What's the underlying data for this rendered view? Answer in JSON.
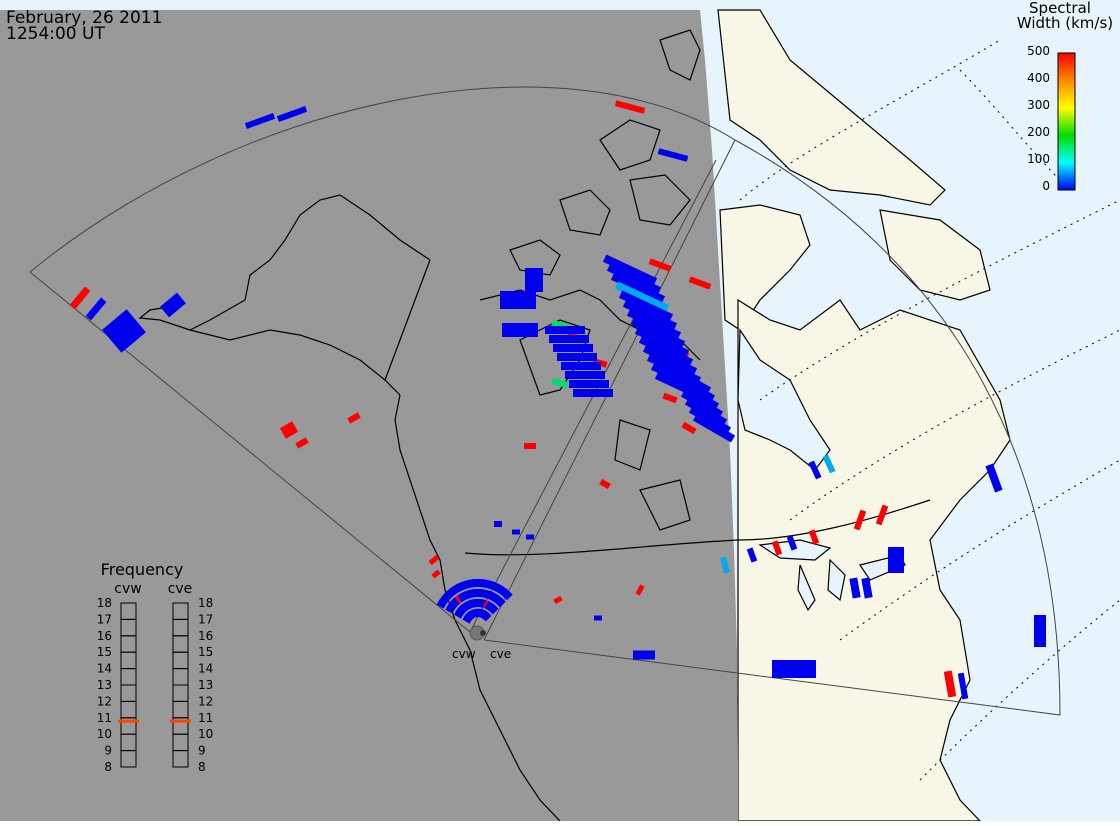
{
  "header": {
    "date": "February, 26 2011",
    "time": "1254:00 UT"
  },
  "legend": {
    "title_line1": "Spectral",
    "title_line2": "Width (km/s)",
    "ticks": [
      "500",
      "400",
      "300",
      "200",
      "100",
      "0"
    ],
    "colors": [
      "#ff0000",
      "#ff8800",
      "#ffff00",
      "#00dd00",
      "#00ffff",
      "#0000ff"
    ]
  },
  "frequency_panel": {
    "title": "Frequency",
    "radar_left": "cvw",
    "radar_right": "cve",
    "levels": [
      "18",
      "17",
      "16",
      "15",
      "14",
      "13",
      "12",
      "11",
      "10",
      "9",
      "8"
    ],
    "cvw_value": 10.8,
    "cve_value": 10.8,
    "marker_color": "#ff4400"
  },
  "radars": {
    "site_label_left": "cvw",
    "site_label_right": "cve"
  },
  "colors": {
    "night": "#999999",
    "day_land": "#f8f6e6",
    "day_ocean": "#e8f4fc",
    "scatter_blue": "#0000ee",
    "scatter_red": "#ff0000",
    "scatter_cyan": "#00aaee",
    "scatter_green": "#00dd66"
  }
}
